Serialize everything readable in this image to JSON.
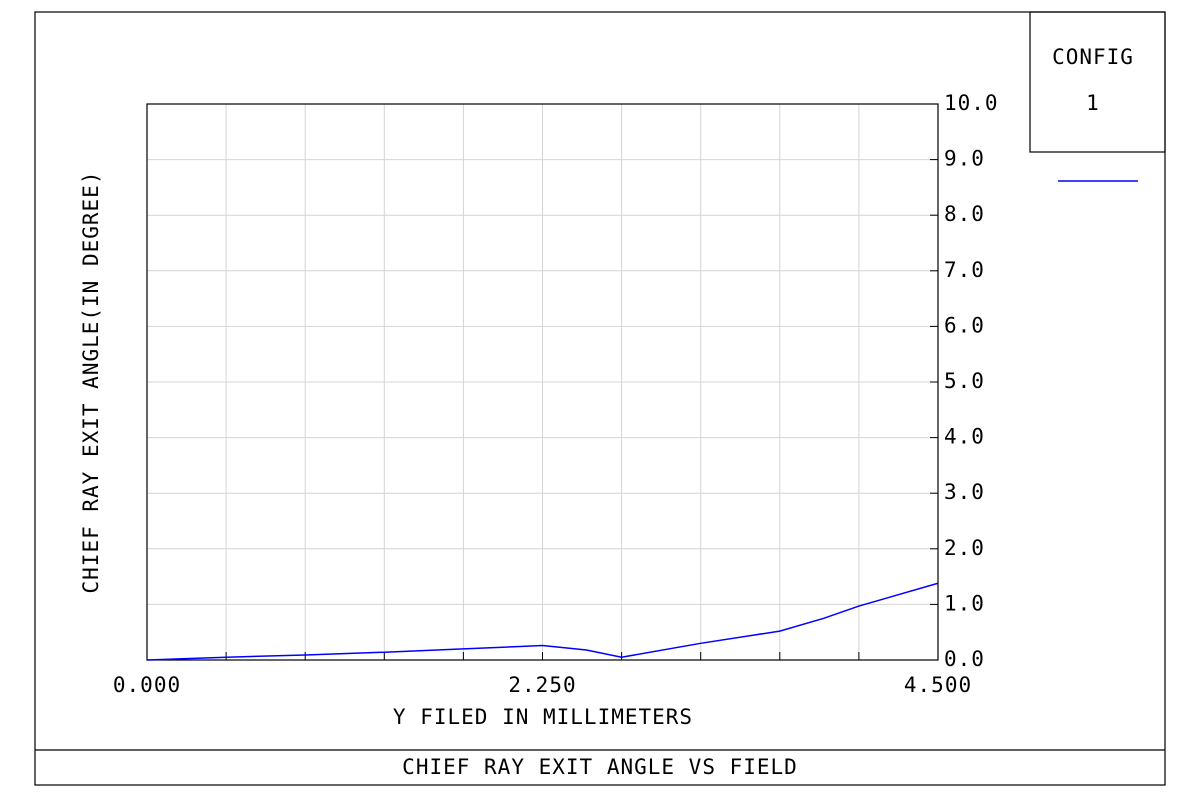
{
  "chart_data": {
    "type": "line",
    "title": "CHIEF RAY EXIT ANGLE VS FIELD",
    "x_label": "Y FILED IN MILLIMETERS",
    "y_label": "CHIEF RAY EXIT ANGLE(IN DEGREE)",
    "legend_title": "CONFIG",
    "x": [
      0,
      0.45,
      0.9,
      1.35,
      1.8,
      2.25,
      2.5,
      2.7,
      3.15,
      3.6,
      3.85,
      4.05,
      4.5
    ],
    "series": [
      {
        "name": "1",
        "color": "#0000ff",
        "values": [
          0,
          0.05,
          0.09,
          0.14,
          0.2,
          0.26,
          0.18,
          0.05,
          0.3,
          0.52,
          0.75,
          0.97,
          1.38
        ]
      }
    ],
    "xlim": [
      0,
      4.5
    ],
    "xticks": [
      {
        "value": 0,
        "label": "0.000"
      },
      {
        "value": 2.25,
        "label": "2.250"
      },
      {
        "value": 4.5,
        "label": "4.500"
      }
    ],
    "xgrid": [
      0.45,
      0.9,
      1.35,
      1.8,
      2.25,
      2.7,
      3.15,
      3.6,
      4.05
    ],
    "ylim": [
      0,
      10
    ],
    "yticks": [
      {
        "value": 0,
        "label": "0.0"
      },
      {
        "value": 1,
        "label": "1.0"
      },
      {
        "value": 2,
        "label": "2.0"
      },
      {
        "value": 3,
        "label": "3.0"
      },
      {
        "value": 4,
        "label": "4.0"
      },
      {
        "value": 5,
        "label": "5.0"
      },
      {
        "value": 6,
        "label": "6.0"
      },
      {
        "value": 7,
        "label": "7.0"
      },
      {
        "value": 8,
        "label": "8.0"
      },
      {
        "value": 9,
        "label": "9.0"
      },
      {
        "value": 10,
        "label": "10.0"
      }
    ],
    "grid": true
  }
}
